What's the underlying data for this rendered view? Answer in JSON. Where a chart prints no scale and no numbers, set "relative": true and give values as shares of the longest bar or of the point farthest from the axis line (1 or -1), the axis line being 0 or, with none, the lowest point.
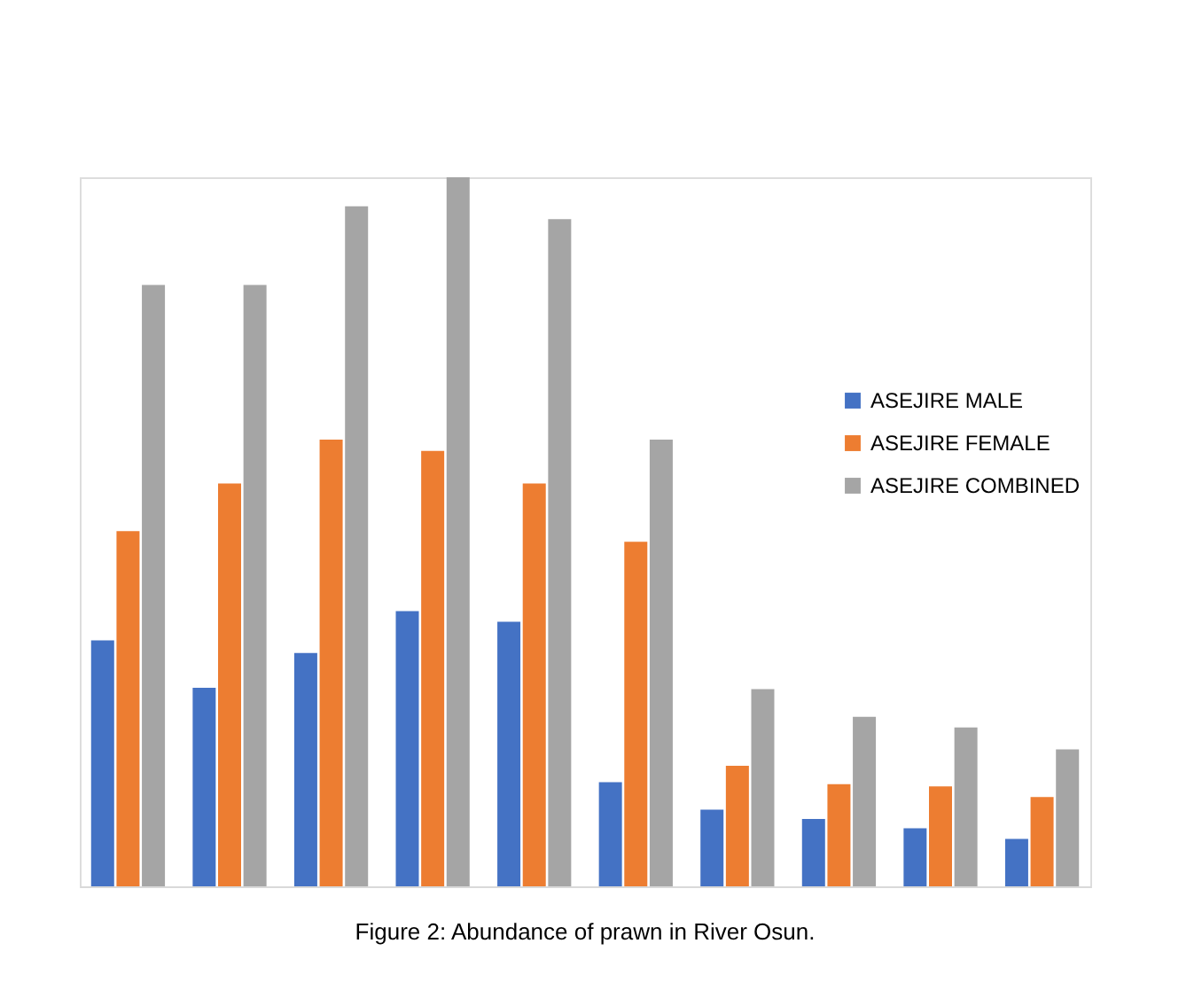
{
  "chart_data": {
    "type": "bar",
    "relative": true,
    "legend": "right",
    "annotations": [
      "Figure 2: Abundance of prawn in River Osun."
    ],
    "categories": [
      null,
      null,
      null,
      null,
      null,
      null,
      null,
      null,
      null,
      null
    ],
    "series": [
      {
        "name": "ASEJIRE MALE",
        "color": "#4472c4",
        "values": [
          0.347,
          0.28,
          0.329,
          0.388,
          0.373,
          0.147,
          0.108,
          0.095,
          0.082,
          0.067
        ]
      },
      {
        "name": "ASEJIRE FEMALE",
        "color": "#ed7d31",
        "values": [
          0.501,
          0.568,
          0.63,
          0.614,
          0.568,
          0.486,
          0.17,
          0.144,
          0.141,
          0.126
        ]
      },
      {
        "name": "ASEJIRE COMBINED",
        "color": "#a5a5a5",
        "values": [
          0.848,
          0.848,
          0.959,
          1.0,
          0.941,
          0.63,
          0.278,
          0.239,
          0.224,
          0.193
        ]
      }
    ]
  }
}
